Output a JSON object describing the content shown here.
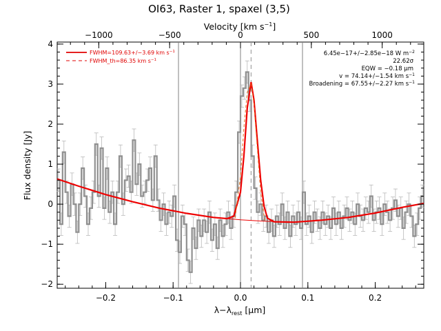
{
  "chart_data": {
    "type": "line",
    "title": "OI63, Raster 1, spaxel (3,5)",
    "xlabel": "λ−λrest [μm]",
    "xlabel_main": "λ−λ",
    "xlabel_sub": "rest",
    "xlabel_unit_pre": " [",
    "xlabel_unit_mu": "μ",
    "xlabel_unit_post": "m]",
    "ylabel": "Flux density [Jy]",
    "x2label": "Velocity [km s⁻¹]",
    "x2label_main": "Velocity [km s",
    "x2label_sup": "−1",
    "x2label_end": "]",
    "xlim": [
      -0.272,
      0.272
    ],
    "ylim": [
      -2.1,
      4.05
    ],
    "x_ticks": [
      "−0.2",
      "−0.1",
      "0.0",
      "0.1",
      "0.2"
    ],
    "x_tick_values": [
      -0.2,
      -0.1,
      0.0,
      0.1,
      0.2
    ],
    "y_ticks": [
      "−2",
      "−1",
      "0",
      "1",
      "2",
      "3",
      "4"
    ],
    "y_tick_values": [
      -2,
      -1,
      0,
      1,
      2,
      3,
      4
    ],
    "velocity_ticks": [
      "−1000",
      "−500",
      "0",
      "500",
      "1000"
    ],
    "velocity_tick_values": [
      -1000,
      -500,
      0,
      500,
      1000
    ],
    "vertical_lines_solid": [
      -0.092,
      0.0,
      0.092
    ],
    "vertical_line_dashed": 0.0157,
    "legend": [
      {
        "label": "FWHM=109.63+/−3.69 km s",
        "sup": "−1",
        "style": "solid",
        "color": "#e00000"
      },
      {
        "label": "FWHM_th=86.35 km s",
        "sup": "−1",
        "style": "dashed",
        "color": "#e00000"
      }
    ],
    "annotations": [
      {
        "text": "6.45e−17+/−2.85e−18 W m",
        "sup": "−2"
      },
      {
        "text": "22.62σ",
        "sup": ""
      },
      {
        "text": "EQW = −0.18 μm",
        "sup": ""
      },
      {
        "text": "v = 74.14+/−1.54 km s",
        "sup": "−1"
      },
      {
        "text": "Broadening = 67.55+/−2.27 km s",
        "sup": "−1"
      }
    ],
    "series": [
      {
        "kind": "data-histogram",
        "color": "#909090",
        "x": [
          -0.272,
          -0.268,
          -0.264,
          -0.26,
          -0.256,
          -0.252,
          -0.248,
          -0.244,
          -0.24,
          -0.236,
          -0.232,
          -0.228,
          -0.224,
          -0.22,
          -0.216,
          -0.212,
          -0.208,
          -0.204,
          -0.2,
          -0.196,
          -0.192,
          -0.188,
          -0.184,
          -0.18,
          -0.176,
          -0.172,
          -0.168,
          -0.164,
          -0.16,
          -0.156,
          -0.152,
          -0.148,
          -0.144,
          -0.14,
          -0.136,
          -0.132,
          -0.128,
          -0.124,
          -0.12,
          -0.116,
          -0.112,
          -0.108,
          -0.104,
          -0.1,
          -0.096,
          -0.092,
          -0.088,
          -0.084,
          -0.08,
          -0.076,
          -0.072,
          -0.068,
          -0.064,
          -0.06,
          -0.056,
          -0.052,
          -0.048,
          -0.044,
          -0.04,
          -0.036,
          -0.032,
          -0.028,
          -0.024,
          -0.02,
          -0.016,
          -0.012,
          -0.008,
          -0.004,
          0.0,
          0.004,
          0.008,
          0.012,
          0.016,
          0.02,
          0.024,
          0.028,
          0.032,
          0.036,
          0.04,
          0.044,
          0.048,
          0.052,
          0.056,
          0.06,
          0.064,
          0.068,
          0.072,
          0.076,
          0.08,
          0.084,
          0.088,
          0.092,
          0.096,
          0.1,
          0.104,
          0.108,
          0.112,
          0.116,
          0.12,
          0.124,
          0.128,
          0.132,
          0.136,
          0.14,
          0.144,
          0.148,
          0.152,
          0.156,
          0.16,
          0.164,
          0.168,
          0.172,
          0.176,
          0.18,
          0.184,
          0.188,
          0.192,
          0.196,
          0.2,
          0.204,
          0.208,
          0.212,
          0.216,
          0.22,
          0.224,
          0.228,
          0.232,
          0.236,
          0.24,
          0.244,
          0.248,
          0.252,
          0.256,
          0.26,
          0.264,
          0.268
        ],
        "y": [
          0.6,
          -0.5,
          1.3,
          0.3,
          -0.3,
          0.5,
          0.0,
          -0.7,
          0.0,
          0.9,
          0.2,
          -0.5,
          -0.1,
          0.3,
          1.5,
          0.2,
          1.4,
          -0.1,
          0.9,
          -0.2,
          0.3,
          -0.5,
          0.3,
          1.2,
          0.0,
          0.6,
          0.7,
          0.3,
          1.6,
          0.5,
          1.0,
          0.2,
          0.3,
          0.6,
          0.9,
          0.1,
          1.2,
          0.1,
          -0.4,
          0.0,
          -0.5,
          -0.2,
          -0.3,
          0.2,
          -0.9,
          -1.2,
          -0.3,
          -0.5,
          -1.4,
          -1.7,
          -0.6,
          -1.1,
          -0.4,
          -0.8,
          -0.4,
          -0.7,
          -0.2,
          -0.9,
          -0.5,
          -1.1,
          -0.4,
          -0.8,
          -0.5,
          -0.2,
          -0.6,
          -0.3,
          0.3,
          1.8,
          2.7,
          2.9,
          3.3,
          2.6,
          1.2,
          0.4,
          -0.2,
          0.0,
          -0.4,
          -0.3,
          -0.7,
          -0.4,
          -0.8,
          -0.3,
          -0.5,
          0.0,
          -0.6,
          -0.2,
          -0.8,
          -0.3,
          -0.5,
          -0.2,
          -0.6,
          0.3,
          -0.5,
          -0.3,
          -0.7,
          -0.2,
          -0.4,
          -0.6,
          -0.2,
          -0.5,
          -0.3,
          -0.6,
          -0.1,
          -0.5,
          -0.2,
          -0.6,
          -0.3,
          -0.1,
          -0.4,
          -0.2,
          -0.5,
          0.0,
          -0.3,
          -0.4,
          -0.1,
          -0.2,
          0.2,
          -0.4,
          -0.2,
          -0.1,
          -0.5,
          0.0,
          -0.2,
          -0.4,
          -0.1,
          0.1,
          -0.3,
          -0.1,
          -0.6,
          -0.2,
          0.0,
          -0.3,
          -0.8,
          -0.5,
          -0.1,
          0.2
        ],
        "err": 0.28
      },
      {
        "kind": "total-fit",
        "color": "#ee0000",
        "x": [
          -0.272,
          -0.24,
          -0.2,
          -0.16,
          -0.12,
          -0.08,
          -0.04,
          -0.02,
          -0.01,
          0.0,
          0.005,
          0.01,
          0.0157,
          0.02,
          0.025,
          0.03,
          0.035,
          0.04,
          0.05,
          0.08,
          0.12,
          0.16,
          0.2,
          0.24,
          0.272
        ],
        "y": [
          0.63,
          0.45,
          0.24,
          0.06,
          -0.1,
          -0.23,
          -0.33,
          -0.36,
          -0.3,
          0.3,
          1.2,
          2.4,
          3.05,
          2.6,
          1.6,
          0.6,
          -0.05,
          -0.35,
          -0.44,
          -0.45,
          -0.4,
          -0.33,
          -0.22,
          -0.08,
          0.02
        ]
      },
      {
        "kind": "baseline",
        "color": "#ee0000",
        "x": [
          -0.02,
          0.0,
          0.03,
          0.06
        ],
        "y": [
          -0.36,
          -0.39,
          -0.42,
          -0.44
        ]
      },
      {
        "kind": "thermal-profile",
        "color": "#e07020",
        "x": [
          -0.008,
          0.0,
          0.005,
          0.01,
          0.0157,
          0.02,
          0.025,
          0.03,
          0.036
        ],
        "y": [
          -0.35,
          0.7,
          1.9,
          2.8,
          3.0,
          2.5,
          1.4,
          0.3,
          -0.4
        ]
      }
    ]
  }
}
